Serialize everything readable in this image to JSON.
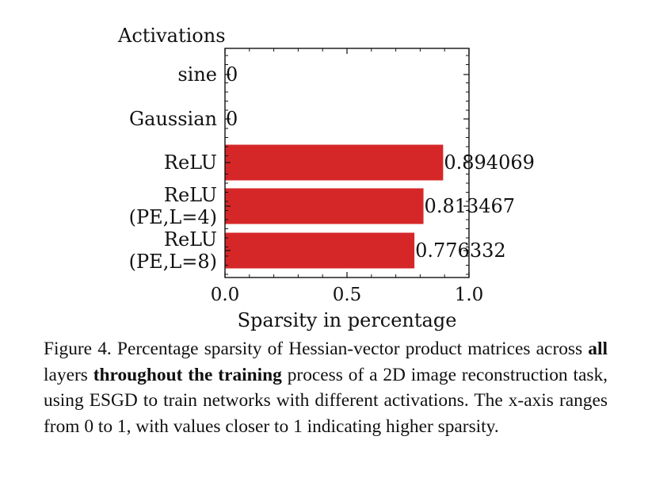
{
  "chart_data": {
    "type": "bar",
    "orientation": "horizontal",
    "title": "",
    "category_axis_title": "Activations",
    "xlabel": "Sparsity in percentage",
    "categories": [
      [
        "sine"
      ],
      [
        "Gaussian"
      ],
      [
        "ReLU"
      ],
      [
        "ReLU",
        "(PE,L=4)"
      ],
      [
        "ReLU",
        "(PE,L=8)"
      ]
    ],
    "values": [
      0,
      0,
      0.894069,
      0.813467,
      0.776332
    ],
    "value_labels": [
      "0",
      "0",
      "0.894069",
      "0.813467",
      "0.776332"
    ],
    "xlim": [
      0,
      1
    ],
    "xticks": [
      0,
      0.5,
      1
    ],
    "xtick_labels": [
      "0.0",
      "0.5",
      "1.0"
    ],
    "bar_color": "#d62728",
    "grid": false
  },
  "caption": {
    "label": "Figure 4.",
    "text_1": " Percentage sparsity of Hessian-vector product matrices across ",
    "bold_1": "all",
    "text_2": " layers ",
    "bold_2": "throughout the training",
    "text_3": " process of a 2D image reconstruction task, using ESGD to train networks with different activations. The x-axis ranges from 0 to 1, with values closer to 1 indicating higher sparsity."
  }
}
